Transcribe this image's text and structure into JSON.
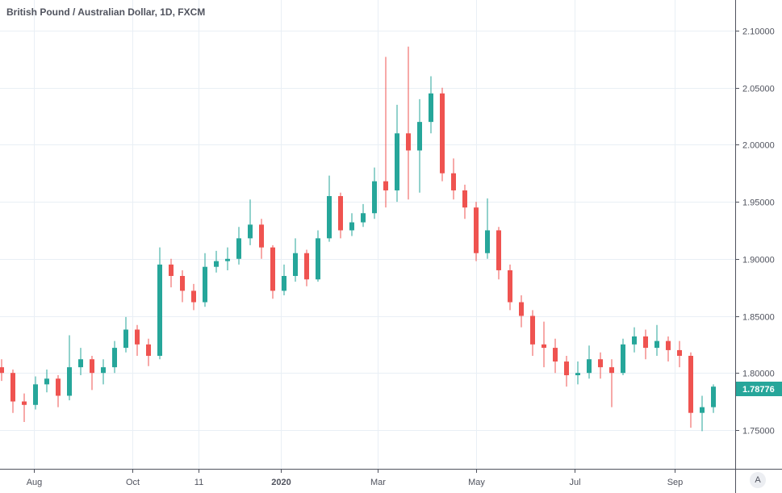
{
  "chart_data": {
    "type": "candlestick",
    "title": "British Pound / Australian Dollar, 1D, FXCM",
    "interval_shown": "weekly approximation of daily candles",
    "ylim": [
      1.72,
      2.11
    ],
    "y_ticks": [
      "2.10000",
      "2.05000",
      "2.00000",
      "1.95000",
      "1.90000",
      "1.85000",
      "1.80000",
      "1.75000"
    ],
    "x_ticks": [
      {
        "label": "Aug",
        "date": "2019-08-01"
      },
      {
        "label": "Oct",
        "date": "2019-10-01"
      },
      {
        "label": "11",
        "date": "2019-11-11"
      },
      {
        "label": "2020",
        "date": "2020-01-01"
      },
      {
        "label": "Mar",
        "date": "2020-03-01"
      },
      {
        "label": "May",
        "date": "2020-05-01"
      },
      {
        "label": "Jul",
        "date": "2020-07-01"
      },
      {
        "label": "Sep",
        "date": "2020-09-01"
      }
    ],
    "grid": true,
    "last_price": "1.78776",
    "colors": {
      "up": "#26a69a",
      "down": "#ef5350",
      "last_price_bg": "#26a69a",
      "grid": "#e9eff5"
    },
    "candles": [
      [
        "2019-07-12",
        1.805,
        1.812,
        1.793,
        1.8
      ],
      [
        "2019-07-19",
        1.8,
        1.803,
        1.765,
        1.775
      ],
      [
        "2019-07-26",
        1.775,
        1.782,
        1.757,
        1.772
      ],
      [
        "2019-08-02",
        1.772,
        1.797,
        1.768,
        1.79
      ],
      [
        "2019-08-09",
        1.79,
        1.803,
        1.783,
        1.795
      ],
      [
        "2019-08-16",
        1.795,
        1.798,
        1.77,
        1.78
      ],
      [
        "2019-08-23",
        1.78,
        1.833,
        1.776,
        1.805
      ],
      [
        "2019-08-30",
        1.805,
        1.822,
        1.798,
        1.812
      ],
      [
        "2019-09-06",
        1.812,
        1.815,
        1.785,
        1.8
      ],
      [
        "2019-09-13",
        1.8,
        1.812,
        1.79,
        1.805
      ],
      [
        "2019-09-20",
        1.805,
        1.828,
        1.8,
        1.822
      ],
      [
        "2019-09-27",
        1.822,
        1.849,
        1.818,
        1.838
      ],
      [
        "2019-10-04",
        1.838,
        1.842,
        1.815,
        1.825
      ],
      [
        "2019-10-11",
        1.825,
        1.83,
        1.806,
        1.815
      ],
      [
        "2019-10-18",
        1.815,
        1.91,
        1.812,
        1.895
      ],
      [
        "2019-10-25",
        1.895,
        1.9,
        1.875,
        1.885
      ],
      [
        "2019-11-01",
        1.885,
        1.89,
        1.862,
        1.872
      ],
      [
        "2019-11-08",
        1.872,
        1.878,
        1.855,
        1.862
      ],
      [
        "2019-11-15",
        1.862,
        1.905,
        1.858,
        1.893
      ],
      [
        "2019-11-22",
        1.893,
        1.907,
        1.888,
        1.898
      ],
      [
        "2019-11-29",
        1.898,
        1.91,
        1.89,
        1.9
      ],
      [
        "2019-12-06",
        1.9,
        1.928,
        1.895,
        1.918
      ],
      [
        "2019-12-13",
        1.918,
        1.952,
        1.912,
        1.93
      ],
      [
        "2019-12-20",
        1.93,
        1.935,
        1.9,
        1.91
      ],
      [
        "2019-12-27",
        1.91,
        1.912,
        1.865,
        1.872
      ],
      [
        "2020-01-03",
        1.872,
        1.895,
        1.868,
        1.885
      ],
      [
        "2020-01-10",
        1.885,
        1.918,
        1.88,
        1.905
      ],
      [
        "2020-01-17",
        1.905,
        1.908,
        1.876,
        1.882
      ],
      [
        "2020-01-24",
        1.882,
        1.925,
        1.88,
        1.918
      ],
      [
        "2020-01-31",
        1.918,
        1.973,
        1.915,
        1.955
      ],
      [
        "2020-02-07",
        1.955,
        1.958,
        1.918,
        1.925
      ],
      [
        "2020-02-14",
        1.925,
        1.94,
        1.92,
        1.932
      ],
      [
        "2020-02-21",
        1.932,
        1.948,
        1.928,
        1.94
      ],
      [
        "2020-02-28",
        1.94,
        1.98,
        1.935,
        1.968
      ],
      [
        "2020-03-06",
        1.968,
        2.077,
        1.945,
        1.96
      ],
      [
        "2020-03-13",
        1.96,
        2.035,
        1.95,
        2.01
      ],
      [
        "2020-03-20",
        2.01,
        2.086,
        1.952,
        1.995
      ],
      [
        "2020-03-27",
        1.995,
        2.04,
        1.958,
        2.02
      ],
      [
        "2020-04-03",
        2.02,
        2.06,
        2.01,
        2.045
      ],
      [
        "2020-04-10",
        2.045,
        2.05,
        1.968,
        1.975
      ],
      [
        "2020-04-17",
        1.975,
        1.988,
        1.952,
        1.96
      ],
      [
        "2020-04-24",
        1.96,
        1.965,
        1.935,
        1.945
      ],
      [
        "2020-05-01",
        1.945,
        1.95,
        1.898,
        1.905
      ],
      [
        "2020-05-08",
        1.905,
        1.953,
        1.9,
        1.925
      ],
      [
        "2020-05-15",
        1.925,
        1.928,
        1.882,
        1.89
      ],
      [
        "2020-05-22",
        1.89,
        1.895,
        1.855,
        1.862
      ],
      [
        "2020-05-29",
        1.862,
        1.868,
        1.84,
        1.85
      ],
      [
        "2020-06-05",
        1.85,
        1.855,
        1.815,
        1.825
      ],
      [
        "2020-06-12",
        1.825,
        1.845,
        1.805,
        1.822
      ],
      [
        "2020-06-19",
        1.822,
        1.83,
        1.8,
        1.81
      ],
      [
        "2020-06-26",
        1.81,
        1.815,
        1.788,
        1.798
      ],
      [
        "2020-07-03",
        1.798,
        1.81,
        1.79,
        1.8
      ],
      [
        "2020-07-10",
        1.8,
        1.824,
        1.795,
        1.812
      ],
      [
        "2020-07-17",
        1.812,
        1.818,
        1.795,
        1.805
      ],
      [
        "2020-07-24",
        1.805,
        1.812,
        1.77,
        1.8
      ],
      [
        "2020-07-31",
        1.8,
        1.83,
        1.798,
        1.825
      ],
      [
        "2020-08-07",
        1.825,
        1.84,
        1.818,
        1.832
      ],
      [
        "2020-08-14",
        1.832,
        1.838,
        1.812,
        1.822
      ],
      [
        "2020-08-21",
        1.822,
        1.842,
        1.815,
        1.828
      ],
      [
        "2020-08-28",
        1.828,
        1.832,
        1.81,
        1.82
      ],
      [
        "2020-09-04",
        1.82,
        1.828,
        1.805,
        1.815
      ],
      [
        "2020-09-11",
        1.815,
        1.818,
        1.752,
        1.765
      ],
      [
        "2020-09-18",
        1.765,
        1.78,
        1.749,
        1.77
      ],
      [
        "2020-09-25",
        1.77,
        1.79,
        1.765,
        1.788
      ]
    ]
  },
  "controls": {
    "auto_scale_label": "A"
  }
}
